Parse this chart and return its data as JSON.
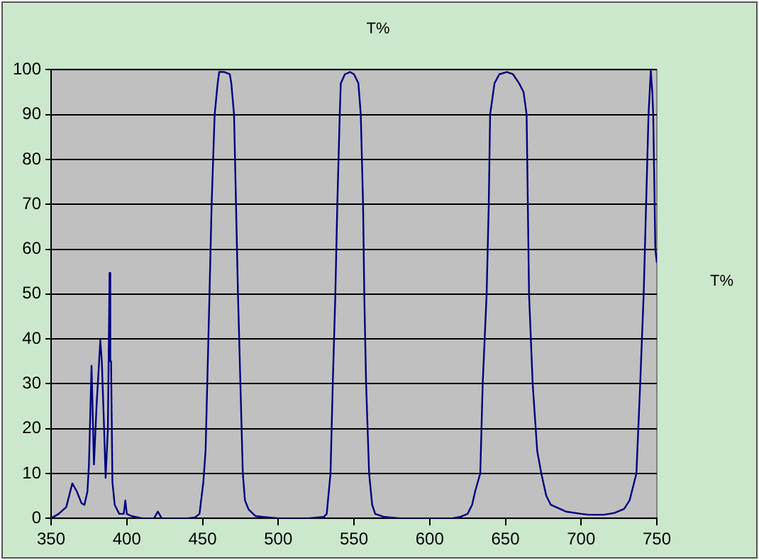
{
  "chart_data": {
    "type": "line",
    "title": "T%",
    "x": [
      350,
      355,
      360,
      364,
      367,
      370,
      372,
      374,
      375,
      376.7,
      378.3,
      380,
      382.5,
      383.5,
      385,
      386,
      387.5,
      388.6,
      389.1,
      389.6,
      390.5,
      392,
      395,
      398,
      399,
      400,
      403,
      410,
      418,
      420.5,
      423,
      430,
      440,
      445,
      448,
      450.5,
      452,
      454.6,
      456,
      458,
      460,
      461,
      464.3,
      468,
      469,
      470.8,
      473.4,
      475,
      476.6,
      478,
      480.4,
      485,
      490,
      500,
      510,
      520,
      530,
      532,
      534.5,
      536,
      537.7,
      539,
      540.6,
      541.3,
      544,
      547.4,
      550,
      552.9,
      554.5,
      556,
      556.8,
      558,
      560,
      562,
      564,
      570,
      580,
      600,
      615,
      620,
      625,
      628,
      630,
      633.4,
      635,
      637.6,
      639,
      639.9,
      642.8,
      646,
      651,
      655,
      659,
      662,
      664,
      665.6,
      668,
      671,
      673.7,
      677,
      680,
      690,
      700,
      705,
      715,
      722,
      728.4,
      732,
      736.5,
      739,
      741.3,
      744.5,
      746,
      747,
      747.6,
      749,
      750
    ],
    "series": [
      {
        "name": "T%",
        "color": "#000080",
        "values": [
          0,
          1,
          2.5,
          7.8,
          6,
          3.4,
          3,
          6,
          12,
          34,
          12,
          25,
          39.7,
          35,
          20,
          9,
          20,
          54.7,
          35,
          35,
          8,
          3,
          1,
          1,
          4,
          1,
          0.5,
          0,
          0,
          1.5,
          0,
          0,
          0,
          0.2,
          1,
          8,
          15,
          50,
          70,
          90,
          97,
          99.5,
          99.5,
          99,
          97,
          90,
          50,
          30,
          10,
          4,
          2,
          0.5,
          0.3,
          0,
          0,
          0,
          0.3,
          1,
          10,
          30,
          50,
          70,
          90,
          97,
          99,
          99.5,
          99,
          97,
          90,
          70,
          50,
          30,
          10,
          3,
          1,
          0.3,
          0,
          0,
          0,
          0.3,
          1,
          3,
          6,
          10,
          30,
          50,
          70,
          90,
          97,
          99,
          99.5,
          99,
          97,
          95,
          90,
          50,
          30,
          15,
          10,
          5,
          3,
          1.5,
          1,
          0.8,
          0.8,
          1.2,
          2.1,
          4,
          10,
          30,
          50,
          90,
          99.8,
          95,
          90,
          60,
          57
        ]
      }
    ],
    "xlim": [
      350,
      750
    ],
    "xticks": [
      350,
      400,
      450,
      500,
      550,
      600,
      650,
      700,
      750
    ],
    "ylim": [
      0,
      100
    ],
    "yticks": [
      0,
      10,
      20,
      30,
      40,
      50,
      60,
      70,
      80,
      90,
      100
    ],
    "grid": "y",
    "legend": "right",
    "marker": "none",
    "line_style": "solid"
  }
}
